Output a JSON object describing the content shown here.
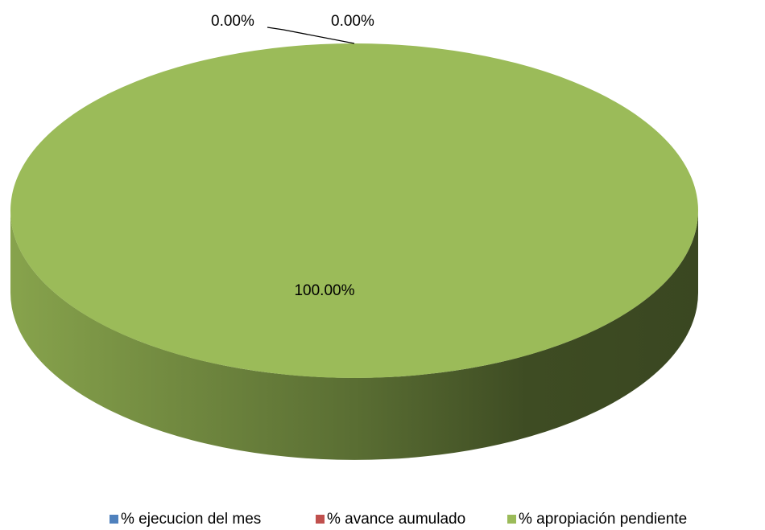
{
  "chart_data": {
    "type": "pie",
    "categories": [
      "% ejecucion del mes",
      "% avance aumulado",
      "% apropiación pendiente"
    ],
    "values": [
      0,
      0,
      100
    ],
    "value_labels": [
      "0.00%",
      "0.00%",
      "100.00%"
    ],
    "colors": [
      "#4f81bd",
      "#c0504d",
      "#9bbb59"
    ],
    "legend": "bottom"
  }
}
